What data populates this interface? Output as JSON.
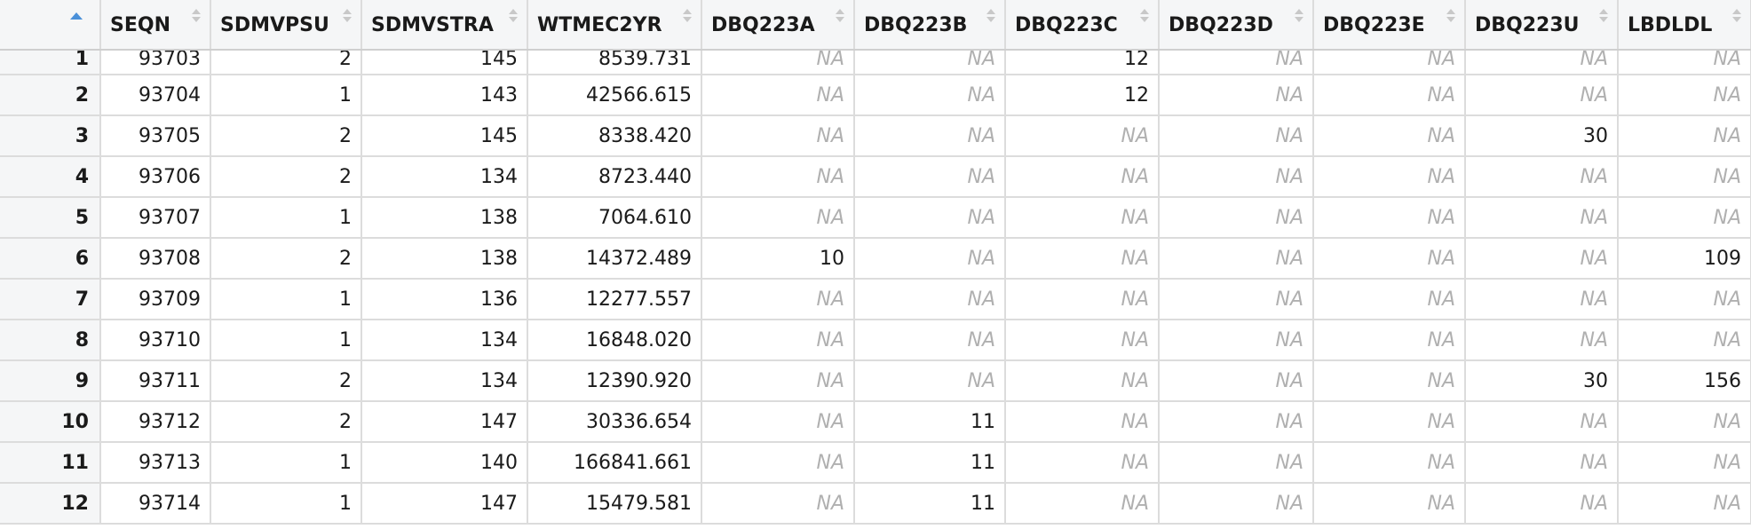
{
  "sort_indicator": "ascending",
  "columns": [
    "SEQN",
    "SDMVPSU",
    "SDMVSTRA",
    "WTMEC2YR",
    "DBQ223A",
    "DBQ223B",
    "DBQ223C",
    "DBQ223D",
    "DBQ223E",
    "DBQ223U",
    "LBDLDL"
  ],
  "rows": [
    {
      "n": "1",
      "cells": [
        "93703",
        "2",
        "145",
        "8539.731",
        "NA",
        "NA",
        "12",
        "NA",
        "NA",
        "NA",
        "NA"
      ]
    },
    {
      "n": "2",
      "cells": [
        "93704",
        "1",
        "143",
        "42566.615",
        "NA",
        "NA",
        "12",
        "NA",
        "NA",
        "NA",
        "NA"
      ]
    },
    {
      "n": "3",
      "cells": [
        "93705",
        "2",
        "145",
        "8338.420",
        "NA",
        "NA",
        "NA",
        "NA",
        "NA",
        "30",
        "NA"
      ]
    },
    {
      "n": "4",
      "cells": [
        "93706",
        "2",
        "134",
        "8723.440",
        "NA",
        "NA",
        "NA",
        "NA",
        "NA",
        "NA",
        "NA"
      ]
    },
    {
      "n": "5",
      "cells": [
        "93707",
        "1",
        "138",
        "7064.610",
        "NA",
        "NA",
        "NA",
        "NA",
        "NA",
        "NA",
        "NA"
      ]
    },
    {
      "n": "6",
      "cells": [
        "93708",
        "2",
        "138",
        "14372.489",
        "10",
        "NA",
        "NA",
        "NA",
        "NA",
        "NA",
        "109"
      ]
    },
    {
      "n": "7",
      "cells": [
        "93709",
        "1",
        "136",
        "12277.557",
        "NA",
        "NA",
        "NA",
        "NA",
        "NA",
        "NA",
        "NA"
      ]
    },
    {
      "n": "8",
      "cells": [
        "93710",
        "1",
        "134",
        "16848.020",
        "NA",
        "NA",
        "NA",
        "NA",
        "NA",
        "NA",
        "NA"
      ]
    },
    {
      "n": "9",
      "cells": [
        "93711",
        "2",
        "134",
        "12390.920",
        "NA",
        "NA",
        "NA",
        "NA",
        "NA",
        "30",
        "156"
      ]
    },
    {
      "n": "10",
      "cells": [
        "93712",
        "2",
        "147",
        "30336.654",
        "NA",
        "11",
        "NA",
        "NA",
        "NA",
        "NA",
        "NA"
      ]
    },
    {
      "n": "11",
      "cells": [
        "93713",
        "1",
        "140",
        "166841.661",
        "NA",
        "11",
        "NA",
        "NA",
        "NA",
        "NA",
        "NA"
      ]
    },
    {
      "n": "12",
      "cells": [
        "93714",
        "1",
        "147",
        "15479.581",
        "NA",
        "11",
        "NA",
        "NA",
        "NA",
        "NA",
        "NA"
      ]
    }
  ]
}
